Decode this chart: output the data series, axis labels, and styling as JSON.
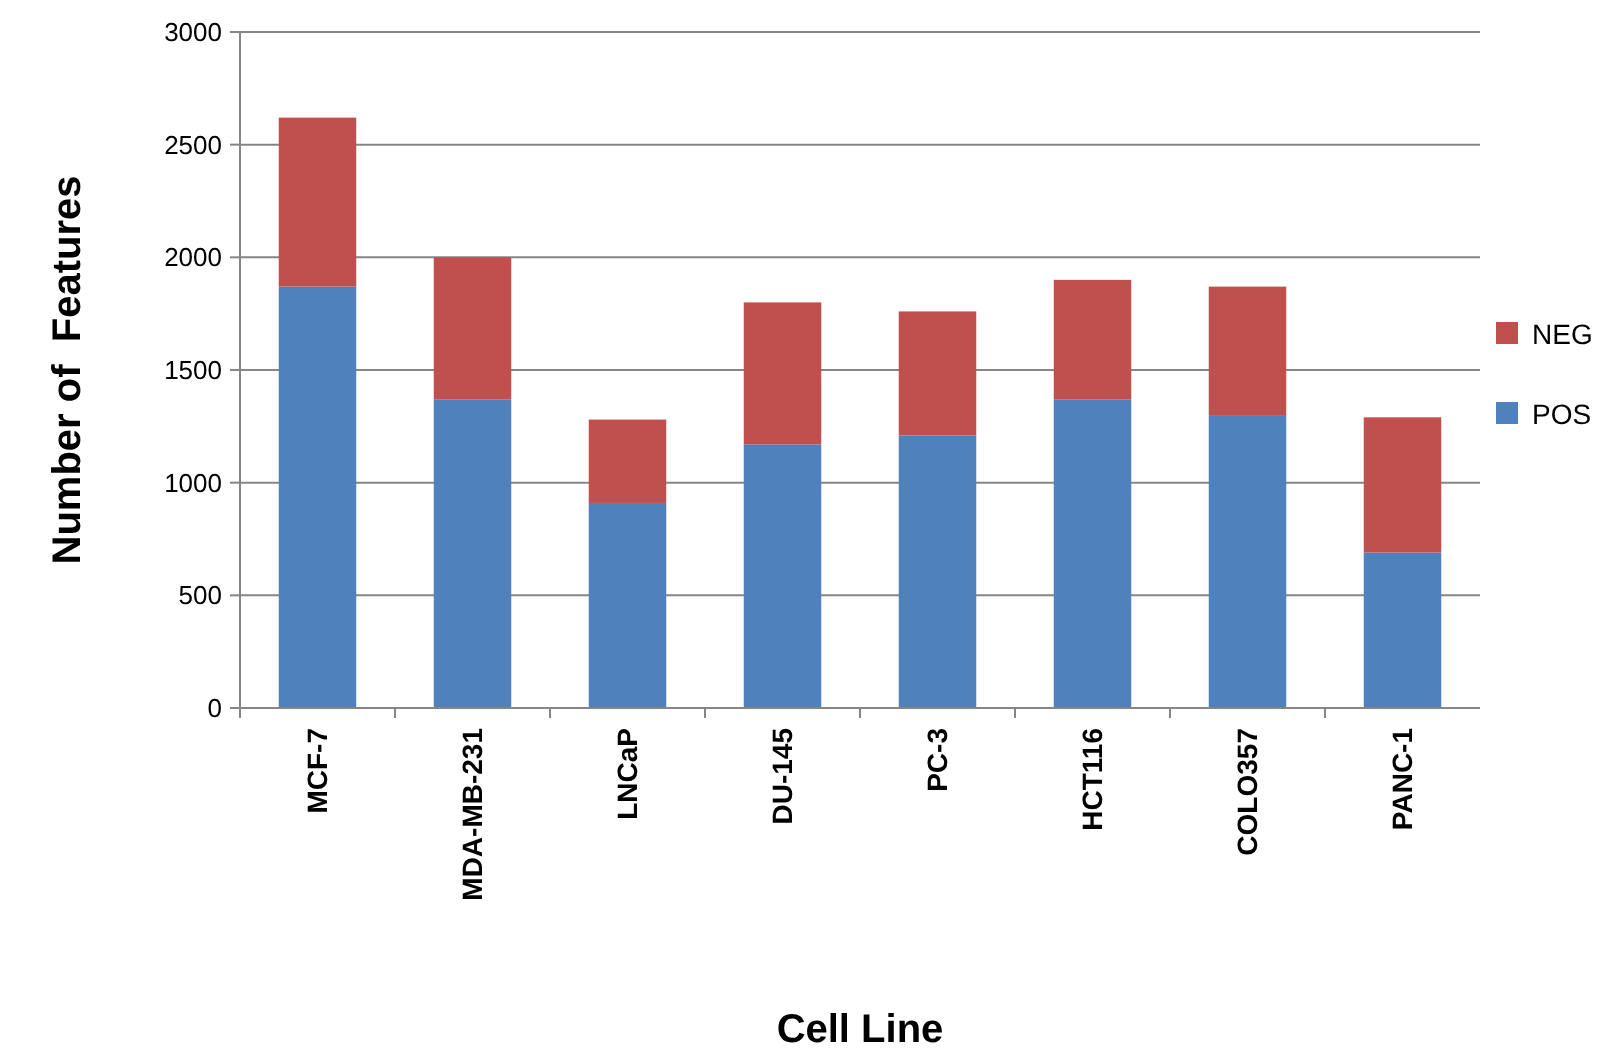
{
  "chart_data": {
    "type": "bar",
    "stacked": true,
    "xlabel": "Cell Line",
    "ylabel": "Number of  Features",
    "categories": [
      "MCF-7",
      "MDA-MB-231",
      "LNCaP",
      "DU-145",
      "PC-3",
      "HCT116",
      "COLO357",
      "PANC-1"
    ],
    "series": [
      {
        "name": "POS",
        "color": "#4f81bd",
        "values": [
          1870,
          1370,
          910,
          1170,
          1210,
          1370,
          1300,
          690
        ]
      },
      {
        "name": "NEG",
        "color": "#c0504d",
        "values": [
          750,
          630,
          370,
          630,
          550,
          530,
          570,
          600
        ]
      }
    ],
    "ylim": [
      0,
      3000
    ],
    "yticks": [
      0,
      500,
      1000,
      1500,
      2000,
      2500,
      3000
    ],
    "grid": "y",
    "legend": "right"
  }
}
